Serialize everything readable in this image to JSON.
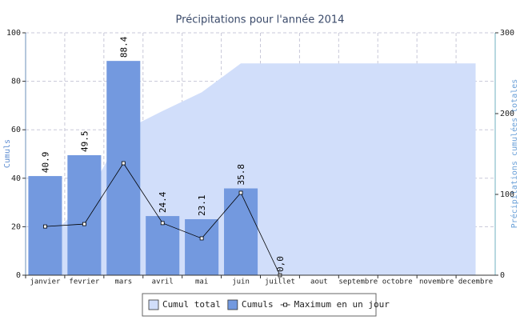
{
  "chart_data": {
    "type": "combo",
    "title": "Précipitations pour l'année 2014",
    "y_label": "Cumuls",
    "y2_label": "Précipitations cumulées totales",
    "categories": [
      "janvier",
      "fevrier",
      "mars",
      "avril",
      "mai",
      "juin",
      "juillet",
      "aout",
      "septembre",
      "octobre",
      "novembre",
      "decembre"
    ],
    "ylim": [
      0,
      100
    ],
    "yticks": [
      0,
      20,
      40,
      60,
      80,
      100
    ],
    "y2lim": [
      0,
      300
    ],
    "y2ticks": [
      0,
      100,
      200,
      300
    ],
    "grid": true,
    "legend": "bottom",
    "series": [
      {
        "name": "Cumul total",
        "type": "area",
        "axis": "y2",
        "color": "#d1defa",
        "values": [
          40.9,
          90.4,
          178.8,
          203.2,
          226.3,
          262.1,
          262.1,
          262.1,
          262.1,
          262.1,
          262.1,
          262.1
        ]
      },
      {
        "name": "Cumuls",
        "type": "bar",
        "color": "#7399df",
        "values": [
          40.9,
          49.5,
          88.4,
          24.4,
          23.1,
          35.8,
          0.0,
          null,
          null,
          null,
          null,
          null
        ],
        "value_labels": [
          "40.9",
          "49.5",
          "88.4",
          "24.4",
          "23.1",
          "35.8",
          "0,0",
          null,
          null,
          null,
          null,
          null
        ]
      },
      {
        "name": "Maximum en un jour",
        "type": "line",
        "color": "#000000",
        "values": [
          20.1,
          21.1,
          46.2,
          21.5,
          15.2,
          34.0,
          0.0,
          null,
          null,
          null,
          null,
          null
        ]
      }
    ]
  }
}
